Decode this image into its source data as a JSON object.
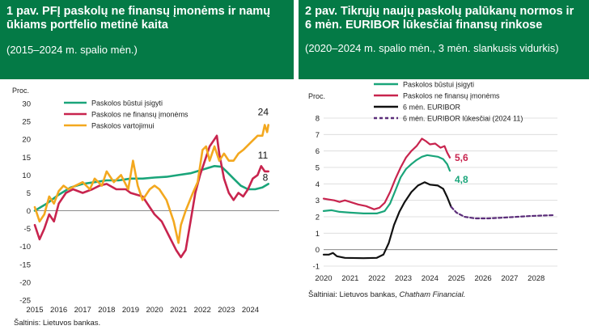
{
  "colors": {
    "header_bg": "#047a46",
    "green": "#1aa57a",
    "red": "#c8244e",
    "yellow": "#f3a81f",
    "black": "#111111",
    "purple": "#5b2d7a"
  },
  "left": {
    "title": "1 pav. PFĮ paskolų ne finansų įmonėms ir namų ūkiams portfelio metinė kaita",
    "subtitle": "(2015–2024 m. spalio mėn.)",
    "source": "Šaltinis: Lietuvos bankas."
  },
  "right": {
    "title": "2 pav.  Tikrųjų naujų paskolų palūkanų normos ir 6 mėn. EURIBOR lūkesčiai finansų rinkose",
    "subtitle": "(2020–2024 m. spalio mėn., 3 mėn. slankusis vidurkis)",
    "source_prefix": "Šaltiniai: Lietuvos bankas, ",
    "source_italic": "Chatham Financial."
  },
  "chart_data": [
    {
      "type": "line",
      "ylabel": "Proc.",
      "ylim": [
        -25,
        30
      ],
      "yticks": [
        "30",
        "25",
        "20",
        "15",
        "10",
        "5",
        "0",
        "-5",
        "-10",
        "-15",
        "-20",
        "-25"
      ],
      "xlim": [
        2015,
        2025.2
      ],
      "xticks": [
        "2015",
        "2016",
        "2017",
        "2018",
        "2019",
        "2020",
        "2021",
        "2022",
        "2023",
        "2024"
      ],
      "series": [
        {
          "name": "Paskolos būstui įsigyti",
          "color": "#1aa57a",
          "points": [
            [
              2015,
              0
            ],
            [
              2015.5,
              2
            ],
            [
              2016,
              4.5
            ],
            [
              2016.5,
              6.5
            ],
            [
              2017,
              7.5
            ],
            [
              2017.5,
              8
            ],
            [
              2018,
              8.5
            ],
            [
              2018.5,
              8.5
            ],
            [
              2019,
              9
            ],
            [
              2019.5,
              9
            ],
            [
              2020,
              9.3
            ],
            [
              2020.5,
              9.5
            ],
            [
              2021,
              10
            ],
            [
              2021.5,
              10.5
            ],
            [
              2022,
              11.5
            ],
            [
              2022.5,
              12.5
            ],
            [
              2022.8,
              12.3
            ],
            [
              2023,
              11
            ],
            [
              2023.3,
              9
            ],
            [
              2023.6,
              7
            ],
            [
              2023.9,
              6
            ],
            [
              2024.2,
              6
            ],
            [
              2024.5,
              6.5
            ],
            [
              2024.75,
              7.5
            ]
          ]
        },
        {
          "name": "Paskolos ne finansų įmonėms",
          "color": "#c8244e",
          "points": [
            [
              2015,
              -4
            ],
            [
              2015.2,
              -8
            ],
            [
              2015.4,
              -5
            ],
            [
              2015.6,
              -1
            ],
            [
              2015.8,
              -3
            ],
            [
              2016,
              2
            ],
            [
              2016.3,
              5
            ],
            [
              2016.6,
              6
            ],
            [
              2017,
              5
            ],
            [
              2017.4,
              6
            ],
            [
              2017.7,
              7
            ],
            [
              2018,
              7.5
            ],
            [
              2018.4,
              6
            ],
            [
              2018.8,
              6
            ],
            [
              2019,
              5
            ],
            [
              2019.5,
              4
            ],
            [
              2020,
              -1
            ],
            [
              2020.3,
              -3
            ],
            [
              2020.6,
              -7
            ],
            [
              2020.9,
              -11
            ],
            [
              2021.1,
              -13
            ],
            [
              2021.3,
              -11
            ],
            [
              2021.5,
              -3
            ],
            [
              2021.7,
              5
            ],
            [
              2021.9,
              10
            ],
            [
              2022.1,
              14
            ],
            [
              2022.3,
              18
            ],
            [
              2022.5,
              20
            ],
            [
              2022.6,
              21
            ],
            [
              2022.7,
              16
            ],
            [
              2022.9,
              9
            ],
            [
              2023.1,
              5
            ],
            [
              2023.3,
              3
            ],
            [
              2023.5,
              5
            ],
            [
              2023.7,
              4
            ],
            [
              2023.9,
              6
            ],
            [
              2024.1,
              9
            ],
            [
              2024.3,
              10
            ],
            [
              2024.45,
              12.5
            ],
            [
              2024.6,
              11
            ],
            [
              2024.75,
              11
            ]
          ]
        },
        {
          "name": "Paskolos vartojimui",
          "color": "#f3a81f",
          "points": [
            [
              2015,
              1
            ],
            [
              2015.2,
              -3
            ],
            [
              2015.4,
              -1
            ],
            [
              2015.6,
              4
            ],
            [
              2015.8,
              2
            ],
            [
              2016,
              5.5
            ],
            [
              2016.2,
              7
            ],
            [
              2016.4,
              6
            ],
            [
              2016.7,
              7
            ],
            [
              2017,
              8
            ],
            [
              2017.3,
              6
            ],
            [
              2017.5,
              9
            ],
            [
              2017.8,
              7
            ],
            [
              2018,
              11
            ],
            [
              2018.3,
              8
            ],
            [
              2018.6,
              10
            ],
            [
              2018.9,
              6
            ],
            [
              2019.1,
              14
            ],
            [
              2019.3,
              7
            ],
            [
              2019.5,
              3
            ],
            [
              2019.8,
              6
            ],
            [
              2020,
              7
            ],
            [
              2020.2,
              6
            ],
            [
              2020.5,
              3
            ],
            [
              2020.8,
              -3
            ],
            [
              2021,
              -9
            ],
            [
              2021.1,
              -4
            ],
            [
              2021.3,
              0
            ],
            [
              2021.6,
              5
            ],
            [
              2021.8,
              8
            ],
            [
              2022,
              17
            ],
            [
              2022.15,
              18
            ],
            [
              2022.3,
              14
            ],
            [
              2022.5,
              18
            ],
            [
              2022.7,
              14
            ],
            [
              2022.9,
              16
            ],
            [
              2023.1,
              14
            ],
            [
              2023.3,
              14
            ],
            [
              2023.5,
              16
            ],
            [
              2023.7,
              17
            ],
            [
              2024,
              19
            ],
            [
              2024.3,
              21
            ],
            [
              2024.5,
              21
            ],
            [
              2024.6,
              24
            ],
            [
              2024.7,
              22
            ],
            [
              2024.75,
              24
            ]
          ]
        }
      ],
      "end_labels": [
        {
          "text": "24",
          "series": 2
        },
        {
          "text": "11",
          "series": 1
        },
        {
          "text": "8",
          "series": 0
        }
      ]
    },
    {
      "type": "line",
      "ylabel": "Proc.",
      "ylim": [
        -1,
        8
      ],
      "yticks": [
        "8",
        "7",
        "6",
        "5",
        "4",
        "3",
        "2",
        "1",
        "0",
        "-1"
      ],
      "xlim": [
        2020,
        2028.8
      ],
      "xticks": [
        "2020",
        "2021",
        "2022",
        "2023",
        "2024",
        "2025",
        "2026",
        "2027",
        "2028"
      ],
      "series": [
        {
          "name": "Paskolos būstui įsigyti",
          "color": "#1aa57a",
          "dash": false,
          "points": [
            [
              2020,
              2.35
            ],
            [
              2020.3,
              2.4
            ],
            [
              2020.6,
              2.3
            ],
            [
              2021,
              2.25
            ],
            [
              2021.5,
              2.2
            ],
            [
              2022,
              2.2
            ],
            [
              2022.3,
              2.35
            ],
            [
              2022.5,
              2.8
            ],
            [
              2022.7,
              3.6
            ],
            [
              2022.9,
              4.4
            ],
            [
              2023.1,
              4.9
            ],
            [
              2023.3,
              5.2
            ],
            [
              2023.5,
              5.45
            ],
            [
              2023.7,
              5.65
            ],
            [
              2023.9,
              5.75
            ],
            [
              2024.1,
              5.7
            ],
            [
              2024.3,
              5.65
            ],
            [
              2024.5,
              5.5
            ],
            [
              2024.65,
              5.2
            ],
            [
              2024.75,
              4.8
            ]
          ]
        },
        {
          "name": "Paskolos ne finansų įmonėms",
          "color": "#c8244e",
          "dash": false,
          "points": [
            [
              2020,
              3.1
            ],
            [
              2020.2,
              3.05
            ],
            [
              2020.4,
              3.0
            ],
            [
              2020.6,
              2.9
            ],
            [
              2020.8,
              3.0
            ],
            [
              2021,
              2.9
            ],
            [
              2021.3,
              2.75
            ],
            [
              2021.6,
              2.65
            ],
            [
              2021.9,
              2.45
            ],
            [
              2022.1,
              2.55
            ],
            [
              2022.3,
              2.85
            ],
            [
              2022.5,
              3.5
            ],
            [
              2022.7,
              4.3
            ],
            [
              2022.9,
              5.0
            ],
            [
              2023.1,
              5.6
            ],
            [
              2023.3,
              6.0
            ],
            [
              2023.5,
              6.3
            ],
            [
              2023.7,
              6.75
            ],
            [
              2023.85,
              6.6
            ],
            [
              2024,
              6.4
            ],
            [
              2024.2,
              6.45
            ],
            [
              2024.4,
              6.2
            ],
            [
              2024.55,
              6.3
            ],
            [
              2024.65,
              5.9
            ],
            [
              2024.75,
              5.6
            ]
          ]
        },
        {
          "name": "6 mėn. EURIBOR",
          "color": "#111111",
          "dash": false,
          "points": [
            [
              2020,
              -0.3
            ],
            [
              2020.2,
              -0.3
            ],
            [
              2020.35,
              -0.2
            ],
            [
              2020.5,
              -0.4
            ],
            [
              2020.8,
              -0.5
            ],
            [
              2021.5,
              -0.52
            ],
            [
              2022,
              -0.5
            ],
            [
              2022.25,
              -0.3
            ],
            [
              2022.45,
              0.4
            ],
            [
              2022.65,
              1.5
            ],
            [
              2022.85,
              2.3
            ],
            [
              2023.05,
              2.9
            ],
            [
              2023.3,
              3.5
            ],
            [
              2023.55,
              3.9
            ],
            [
              2023.8,
              4.1
            ],
            [
              2024,
              3.95
            ],
            [
              2024.3,
              3.9
            ],
            [
              2024.5,
              3.7
            ],
            [
              2024.65,
              3.2
            ],
            [
              2024.8,
              2.6
            ]
          ]
        },
        {
          "name": "6 mėn. EURIBOR lūkesčiai (2024 11)",
          "color": "#5b2d7a",
          "dash": true,
          "points": [
            [
              2024.8,
              2.6
            ],
            [
              2025,
              2.25
            ],
            [
              2025.3,
              2.0
            ],
            [
              2025.7,
              1.9
            ],
            [
              2026.2,
              1.9
            ],
            [
              2026.8,
              1.95
            ],
            [
              2027.3,
              2.0
            ],
            [
              2027.8,
              2.05
            ],
            [
              2028.3,
              2.08
            ],
            [
              2028.7,
              2.1
            ]
          ]
        }
      ],
      "end_labels": [
        {
          "text": "5,6",
          "series": 1
        },
        {
          "text": "4,8",
          "series": 0
        }
      ]
    }
  ]
}
